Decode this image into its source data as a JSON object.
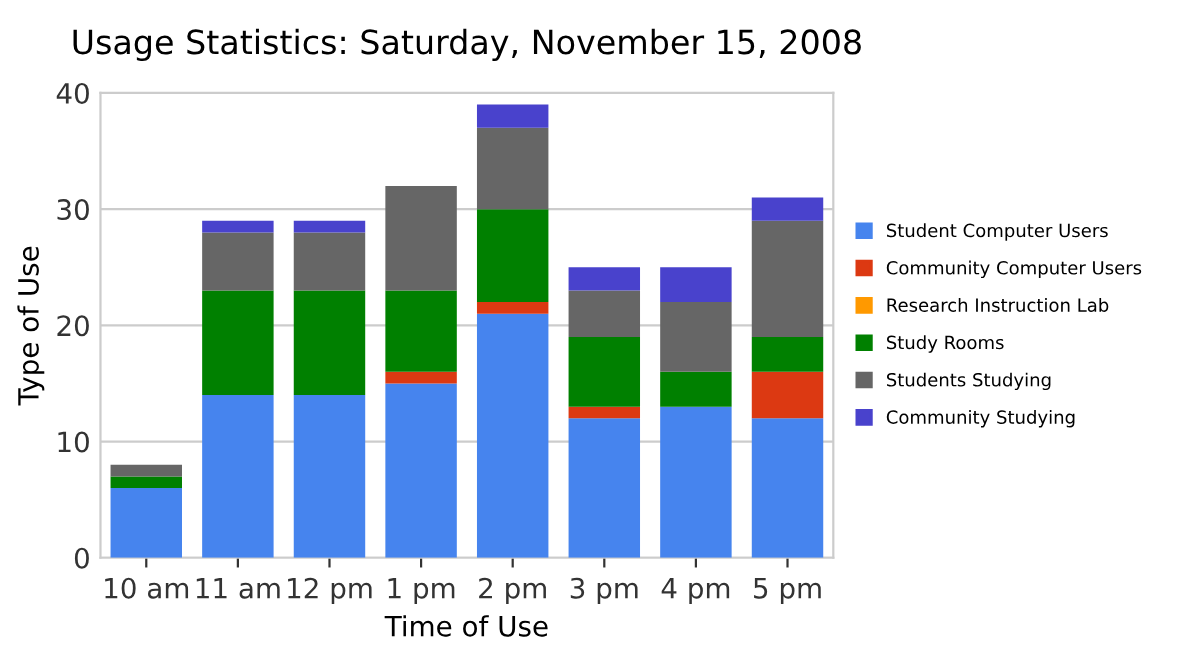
{
  "chart_data": {
    "type": "bar",
    "title": "Usage Statistics: Saturday, November 15, 2008",
    "xlabel": "Time of Use",
    "ylabel": "Type of Use",
    "categories": [
      "10 am",
      "11 am",
      "12 pm",
      "1 pm",
      "2 pm",
      "3 pm",
      "4 pm",
      "5 pm"
    ],
    "stacked": true,
    "ylim": [
      0,
      40
    ],
    "yticks": [
      0,
      10,
      20,
      30,
      40
    ],
    "grid": "y",
    "legend": "right",
    "series": [
      {
        "name": "Student Computer Users",
        "color": "#4684ee",
        "values": [
          6,
          14,
          14,
          15,
          21,
          12,
          13,
          12
        ]
      },
      {
        "name": "Community Computer Users",
        "color": "#dc3912",
        "values": [
          0,
          0,
          0,
          1,
          1,
          1,
          0,
          4
        ]
      },
      {
        "name": "Research Instruction Lab",
        "color": "#ff9900",
        "values": [
          0,
          0,
          0,
          0,
          0,
          0,
          0,
          0
        ]
      },
      {
        "name": "Study Rooms",
        "color": "#008000",
        "values": [
          1,
          9,
          9,
          7,
          8,
          6,
          3,
          3
        ]
      },
      {
        "name": "Students Studying",
        "color": "#666666",
        "values": [
          1,
          5,
          5,
          9,
          7,
          4,
          6,
          10
        ]
      },
      {
        "name": "Community Studying",
        "color": "#4942cc",
        "values": [
          0,
          1,
          1,
          0,
          2,
          2,
          3,
          2
        ]
      }
    ]
  }
}
